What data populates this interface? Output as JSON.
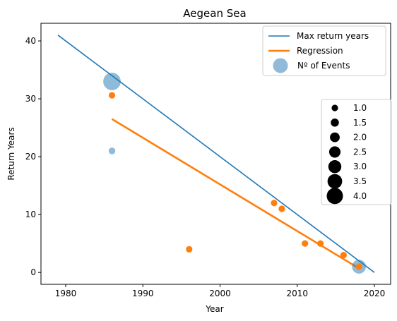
{
  "chart_data": {
    "type": "scatter",
    "title": "Aegean Sea",
    "xlabel": "Year",
    "ylabel": "Return Years",
    "xlim": [
      1976.8,
      2022.1
    ],
    "ylim": [
      -2.05,
      43.05
    ],
    "x_ticks": [
      1980,
      1990,
      2000,
      2010,
      2020
    ],
    "y_ticks": [
      0,
      10,
      20,
      30,
      40
    ],
    "grid": false,
    "legend_placement": "upper right",
    "colors": {
      "max_line": "#1f77b4",
      "regression": "#ff7f0e",
      "events": "#1f77b4",
      "size_legend": "#000000"
    },
    "max_return_line": {
      "name": "Max return years",
      "x": [
        1979,
        2020
      ],
      "y": [
        41,
        0
      ]
    },
    "regression_line": {
      "name": "Regression",
      "x": [
        1986,
        2018
      ],
      "y": [
        26.5,
        0.7
      ]
    },
    "events": {
      "name": "Nº of Events",
      "points": [
        {
          "x": 1986,
          "y": 33,
          "count": 4
        },
        {
          "x": 1986,
          "y": 21,
          "count": 1
        },
        {
          "x": 2018,
          "y": 1,
          "count": 3
        }
      ]
    },
    "orange_points": [
      {
        "x": 1986,
        "y": 30.6
      },
      {
        "x": 1996,
        "y": 4
      },
      {
        "x": 2007,
        "y": 12
      },
      {
        "x": 2008,
        "y": 11
      },
      {
        "x": 2011,
        "y": 5
      },
      {
        "x": 2013,
        "y": 5
      },
      {
        "x": 2016,
        "y": 3
      },
      {
        "x": 2018,
        "y": 1
      }
    ],
    "size_legend": {
      "labels": [
        "1.0",
        "1.5",
        "2.0",
        "2.5",
        "3.0",
        "3.5",
        "4.0"
      ],
      "values": [
        1.0,
        1.5,
        2.0,
        2.5,
        3.0,
        3.5,
        4.0
      ]
    }
  }
}
